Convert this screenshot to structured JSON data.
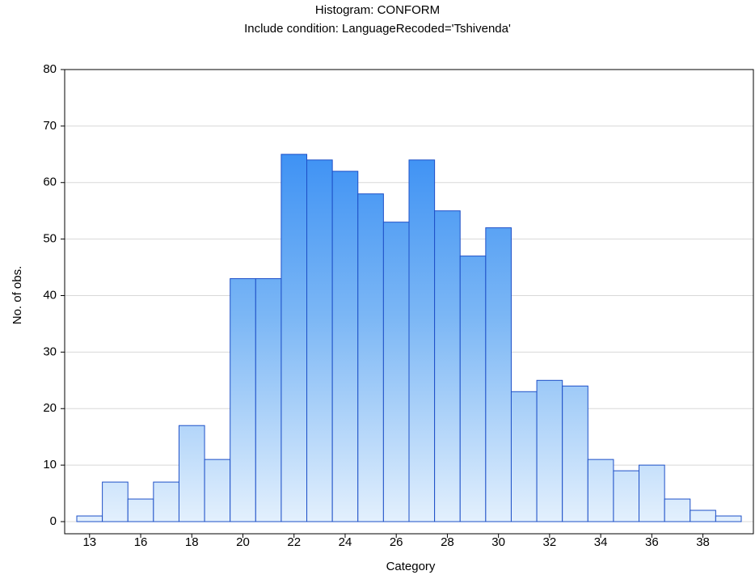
{
  "chart_data": {
    "type": "bar",
    "title": "Histogram: CONFORM",
    "subtitle": "Include condition: LanguageRecoded='Tshivenda'",
    "x_label": "Category",
    "y_label": "No. of obs.",
    "categories": [
      "13",
      null,
      "16",
      null,
      "18",
      null,
      "20",
      null,
      "22",
      null,
      "24",
      null,
      "26",
      null,
      "28",
      null,
      "30",
      null,
      "32",
      null,
      "34",
      null,
      "36",
      null,
      "38",
      null
    ],
    "values": [
      1,
      7,
      4,
      7,
      17,
      11,
      43,
      43,
      65,
      64,
      62,
      58,
      53,
      64,
      55,
      47,
      52,
      23,
      25,
      24,
      11,
      9,
      10,
      4,
      2,
      1
    ],
    "color": "#2b8cf5",
    "ylim": [
      0,
      80
    ],
    "yticks": [
      0,
      10,
      20,
      30,
      40,
      50,
      60,
      70,
      80
    ],
    "grid": true
  }
}
